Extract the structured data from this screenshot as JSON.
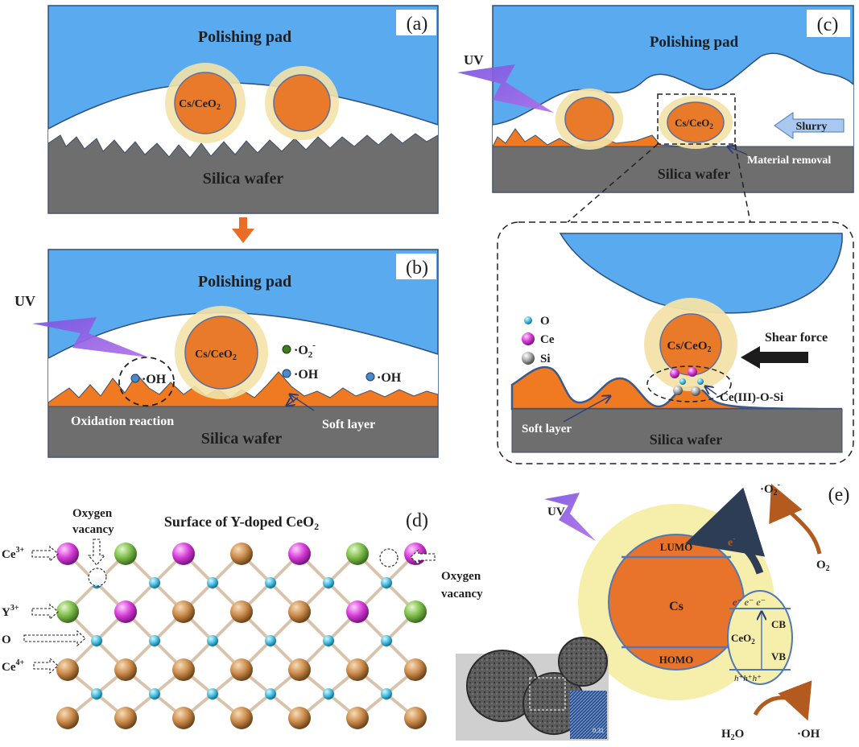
{
  "panels": {
    "a": {
      "label": "(a)",
      "pad": "Polishing pad",
      "particle": "Cs/CeO",
      "particle_sub": "2",
      "wafer": "Silica wafer"
    },
    "b": {
      "label": "(b)",
      "pad": "Polishing pad",
      "uv": "UV",
      "particle": "Cs/CeO",
      "particle_sub": "2",
      "oh_1": "·OH",
      "oh_2": "·OH",
      "oh_3": "·OH",
      "o2_radical": "·O",
      "o2_sub": "2",
      "o2_sup": "-",
      "oxidation": "Oxidation reaction",
      "soft_layer": "Soft layer",
      "wafer": "Silica wafer"
    },
    "c": {
      "label": "(c)",
      "pad": "Polishing pad",
      "uv": "UV",
      "particle": "Cs/CeO",
      "particle_sub": "2",
      "slurry": "Slurry",
      "material_removal": "Material removal",
      "wafer": "Silica wafer",
      "zoom": {
        "legend_o": "O",
        "legend_ce": "Ce",
        "legend_si": "Si",
        "particle": "Cs/CeO",
        "particle_sub": "2",
        "shear_force": "Shear force",
        "bond": "Ce(III)-O-Si",
        "soft_layer": "Soft layer",
        "wafer": "Silica wafer"
      }
    },
    "d": {
      "label": "(d)",
      "title": "Surface of Y-doped CeO",
      "title_sub": "2",
      "ce3_label": "Ce",
      "ce3_sup": "3+",
      "y3_label": "Y",
      "y3_sup": "3+",
      "o_label": "O",
      "ce4_label": "Ce",
      "ce4_sup": "4+",
      "vacancy_left_1": "Oxygen",
      "vacancy_left_2": "vacancy",
      "vacancy_right_1": "Oxygen",
      "vacancy_right_2": "vacancy"
    },
    "e": {
      "label": "(e)",
      "uv": "UV",
      "o2_radical": "·O",
      "o2_radical_sub": "2",
      "o2_radical_sup": "-",
      "o2": "O",
      "o2_sub": "2",
      "electron": "e",
      "electron_sup": "-",
      "lumo": "LUMO",
      "homo": "HOMO",
      "cs": "Cs",
      "ceo2": "CeO",
      "ceo2_sub": "2",
      "cb": "CB",
      "vb": "VB",
      "electrons_row": "e⁻ e⁻ e⁻",
      "holes_row": "h⁺h⁺h⁺",
      "h2o": "H",
      "h2o_sub": "2",
      "h2o_tail": "O",
      "oh": "·OH",
      "tem_scale": "0.31"
    }
  },
  "colors": {
    "pad": "#5aaaf0",
    "wafer": "#707070",
    "particle": "#e87a2a",
    "shell": "#f3e2a8",
    "soft_layer": "#f07a22",
    "ce3": "#d63bd6",
    "y3": "#7dbd4a",
    "ce4": "#c98a4b",
    "oxygen": "#3fb9dc"
  }
}
